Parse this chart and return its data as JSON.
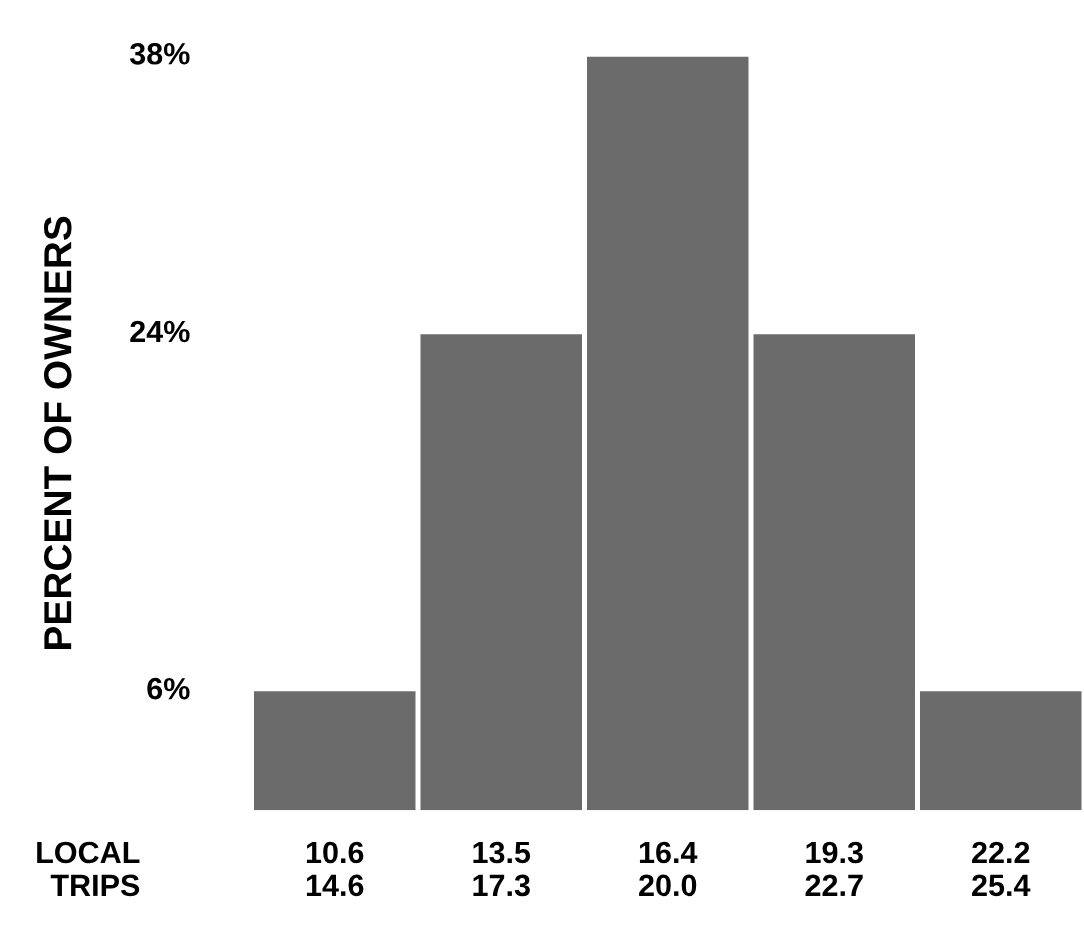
{
  "chart_data": {
    "type": "bar",
    "ylabel": "PERCENT OF OWNERS",
    "categories": [
      "10.6\n14.6",
      "13.5\n17.3",
      "16.4\n20.0",
      "19.3\n22.7",
      "22.2\n25.4"
    ],
    "values": [
      6,
      24,
      38,
      24,
      6
    ],
    "color": "#6b6b6b",
    "ylim": [
      0,
      38
    ],
    "yticks": [
      {
        "value": 6,
        "label": "6%"
      },
      {
        "value": 24,
        "label": "24%"
      },
      {
        "value": 38,
        "label": "38%"
      }
    ],
    "grid": false,
    "annotations": [
      "LOCAL\nTRIPS"
    ]
  }
}
